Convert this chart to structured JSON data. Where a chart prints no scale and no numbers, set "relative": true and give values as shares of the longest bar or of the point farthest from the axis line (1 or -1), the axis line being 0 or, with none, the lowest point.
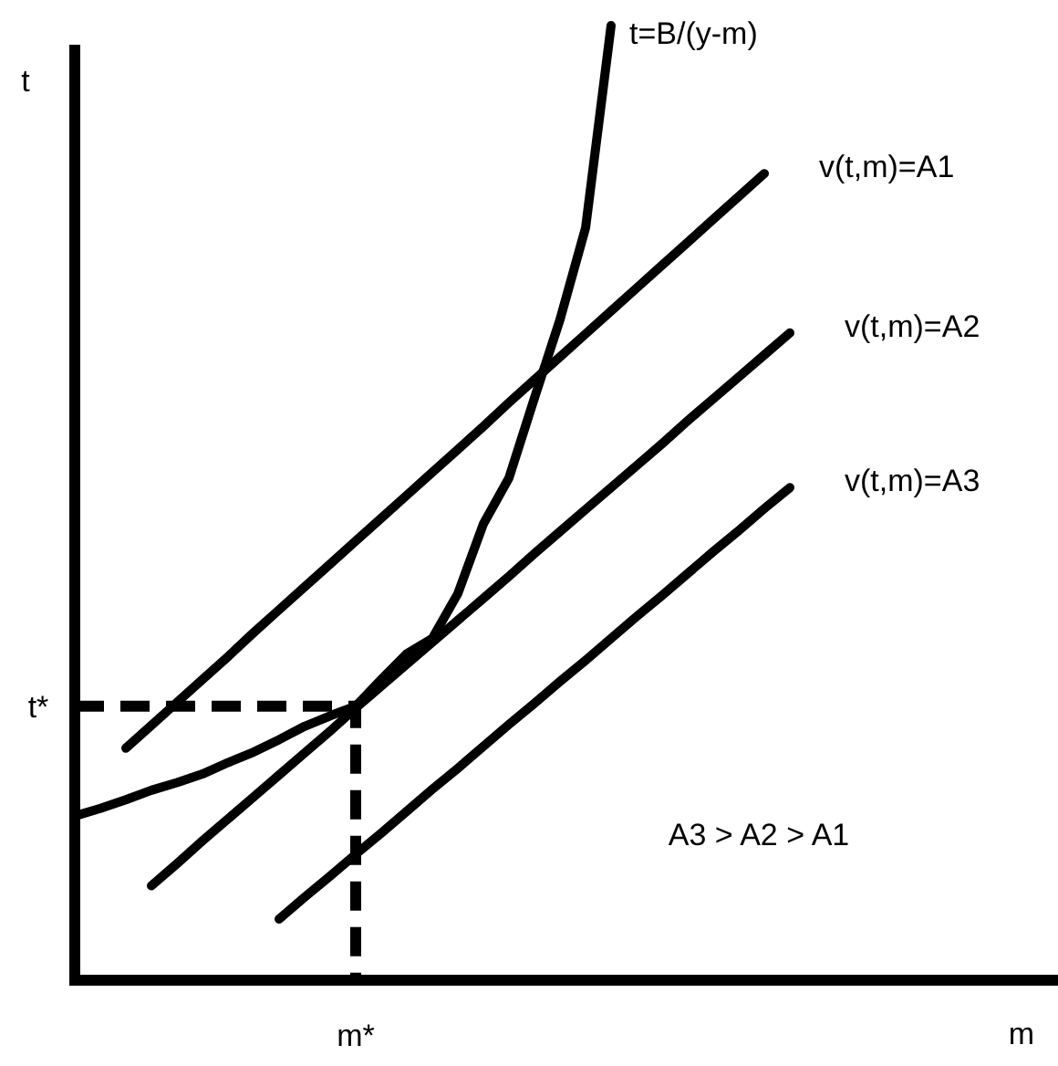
{
  "chart_data": {
    "type": "line",
    "relative": true,
    "xlabel": "m",
    "ylabel": "t",
    "categories": [
      null,
      null,
      null,
      null,
      null,
      null,
      null,
      null,
      null,
      null,
      null,
      null,
      null,
      null,
      null,
      null,
      null,
      null,
      null,
      null,
      null,
      null,
      null,
      null,
      null,
      null,
      null,
      null,
      null,
      null,
      null,
      null,
      null,
      null,
      null,
      null,
      null,
      null,
      null
    ],
    "series": [
      {
        "name": "t=B/(y-m)",
        "color": "#000000",
        "values": [
          0.172,
          0.18,
          0.189,
          0.199,
          0.207,
          0.216,
          0.228,
          0.239,
          0.252,
          0.266,
          0.277,
          0.287,
          0.315,
          0.342,
          0.358,
          0.405,
          0.478,
          0.526,
          0.61,
          0.692,
          0.788,
          1,
          null,
          null,
          null,
          null,
          null,
          null,
          null,
          null,
          null,
          null,
          null,
          null,
          null,
          null,
          null,
          null,
          null
        ]
      },
      {
        "name": "v(t,m)=A1",
        "color": "#000000",
        "values": [
          null,
          null,
          0.243,
          0.267,
          0.291,
          0.315,
          0.339,
          0.364,
          0.388,
          0.412,
          0.436,
          0.46,
          0.484,
          0.508,
          0.532,
          0.556,
          0.58,
          0.605,
          0.629,
          0.653,
          0.677,
          0.701,
          0.725,
          0.749,
          0.773,
          0.797,
          0.821,
          0.845,
          null,
          null,
          null,
          null,
          null,
          null,
          null,
          null,
          null,
          null,
          null
        ]
      },
      {
        "name": "v(t,m)=A2",
        "color": "#000000",
        "values": [
          null,
          null,
          null,
          0.099,
          0.122,
          0.146,
          0.169,
          0.192,
          0.215,
          0.238,
          0.261,
          0.285,
          0.308,
          0.331,
          0.354,
          0.377,
          0.4,
          0.423,
          0.447,
          0.47,
          0.493,
          0.516,
          0.539,
          0.562,
          0.586,
          0.609,
          0.632,
          0.655,
          0.678,
          null,
          null,
          null,
          null,
          null,
          null,
          null,
          null,
          null,
          null
        ]
      },
      {
        "name": "v(t,m)=A3",
        "color": "#000000",
        "values": [
          null,
          null,
          null,
          null,
          null,
          null,
          null,
          null,
          0.064,
          0.087,
          0.109,
          0.132,
          0.154,
          0.177,
          0.2,
          0.222,
          0.245,
          0.268,
          0.29,
          0.313,
          0.335,
          0.358,
          0.381,
          0.403,
          0.426,
          0.449,
          0.471,
          0.494,
          0.516,
          null,
          null,
          null,
          null,
          null,
          null,
          null,
          null,
          null,
          null
        ]
      }
    ],
    "annotations": [
      "t*",
      "m*",
      "A3 > A2 > A1"
    ]
  }
}
